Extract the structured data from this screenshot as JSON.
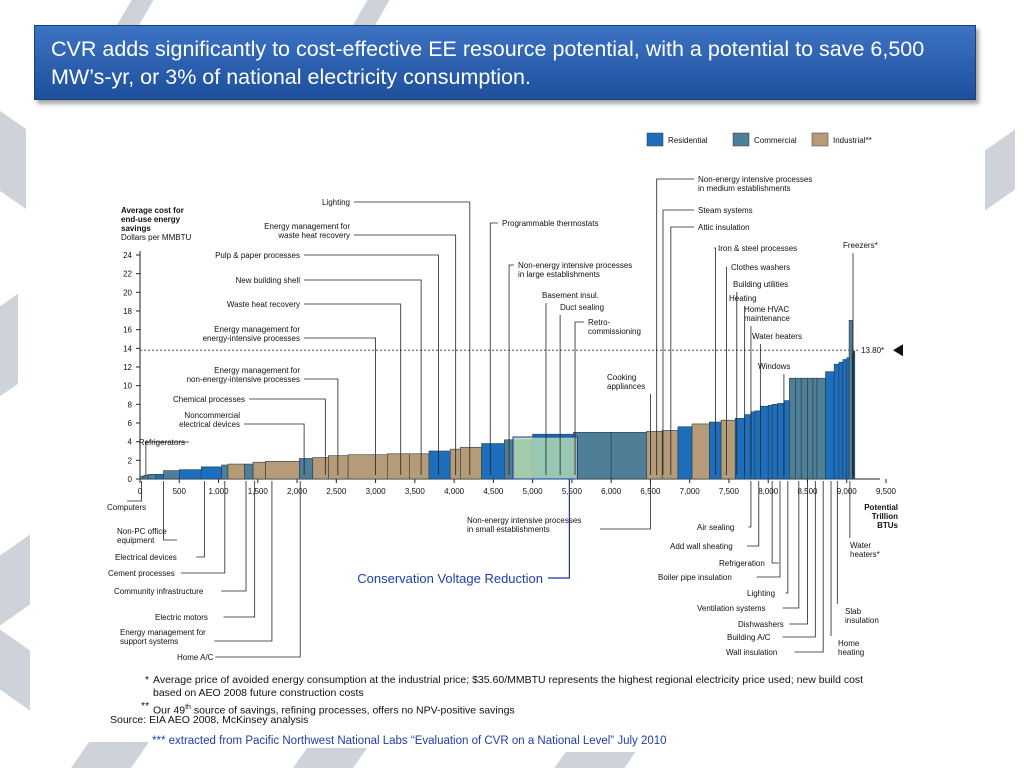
{
  "slide": {
    "title": "CVR adds significantly to cost-effective EE resource potential, with a potential to  save 6,500 MW’s-yr, or 3%  of national electricity consumption.",
    "title_bg": "#2a5fb0",
    "credit": "*** extracted from Pacific Northwest National Labs “Evaluation of CVR on a National Level”  July 2010"
  },
  "footnotes": {
    "note1_mark": "*",
    "note1": "Average price of avoided energy consumption at the industrial price; $35.60/MMBTU represents the highest regional electricity price used; new build cost based on AEO 2008 future construction costs",
    "note2_mark": "**",
    "note2_pre": "Our 49",
    "note2_sup": "th",
    "note2_post": " source of savings, refining processes, offers no NPV-positive savings",
    "source": "Source: EIA AEO 2008, McKinsey analysis"
  },
  "chart_data": {
    "type": "bar",
    "ylabel_lines": [
      "Average cost for",
      "end-use energy",
      "savings",
      "Dollars per MMBTU"
    ],
    "xlabel_lines": [
      "Potential",
      "Trillion",
      "BTUs"
    ],
    "xlim": [
      0,
      9500
    ],
    "ylim": [
      0,
      24
    ],
    "xticks": [
      0,
      500,
      1000,
      1500,
      2000,
      2500,
      3000,
      3500,
      4000,
      4500,
      5000,
      5500,
      6000,
      6500,
      7000,
      7500,
      8000,
      8500,
      9000,
      9500
    ],
    "xtick_labels": [
      "0",
      "500",
      "1,000",
      "1,500",
      "2,000",
      "2,500",
      "3,000",
      "3,500",
      "4,000",
      "4,500",
      "5,000",
      "5,500",
      "6,000",
      "6,500",
      "7,000",
      "7,500",
      "8,000",
      "8,500",
      "9,000",
      "9,500"
    ],
    "yticks": [
      0,
      2,
      4,
      6,
      8,
      10,
      12,
      14,
      16,
      18,
      20,
      22,
      24
    ],
    "reference_line": {
      "value": 13.8,
      "label": "13.80*"
    },
    "legend": {
      "position": "top-right",
      "items": [
        {
          "name": "Residential",
          "color": "#1d6fbd"
        },
        {
          "name": "Commercial",
          "color": "#4f7f96"
        },
        {
          "name": "Industrial**",
          "color": "#b59b77"
        }
      ]
    },
    "colors": {
      "Residential": "#1d6fbd",
      "Commercial": "#4f7f96",
      "Industrial": "#b59b77",
      "CVR": "#b7dfb2",
      "CVR_border": "#2233aa"
    },
    "bars": [
      {
        "x0": 0,
        "x1": 50,
        "y": 0.3,
        "sector": "Commercial"
      },
      {
        "x0": 50,
        "x1": 100,
        "y": 0.4,
        "sector": "Commercial"
      },
      {
        "x0": 100,
        "x1": 200,
        "y": 0.5,
        "sector": "Commercial"
      },
      {
        "x0": 200,
        "x1": 300,
        "y": 0.5,
        "sector": "Residential"
      },
      {
        "x0": 300,
        "x1": 500,
        "y": 0.9,
        "sector": "Commercial"
      },
      {
        "x0": 500,
        "x1": 780,
        "y": 1.0,
        "sector": "Residential"
      },
      {
        "x0": 780,
        "x1": 1040,
        "y": 1.3,
        "sector": "Residential"
      },
      {
        "x0": 1040,
        "x1": 1120,
        "y": 1.5,
        "sector": "Commercial"
      },
      {
        "x0": 1120,
        "x1": 1330,
        "y": 1.6,
        "sector": "Industrial"
      },
      {
        "x0": 1330,
        "x1": 1440,
        "y": 1.6,
        "sector": "Commercial"
      },
      {
        "x0": 1440,
        "x1": 1600,
        "y": 1.8,
        "sector": "Industrial"
      },
      {
        "x0": 1600,
        "x1": 2030,
        "y": 1.9,
        "sector": "Industrial"
      },
      {
        "x0": 2030,
        "x1": 2200,
        "y": 2.2,
        "sector": "Commercial"
      },
      {
        "x0": 2200,
        "x1": 2400,
        "y": 2.3,
        "sector": "Industrial"
      },
      {
        "x0": 2400,
        "x1": 2650,
        "y": 2.5,
        "sector": "Industrial"
      },
      {
        "x0": 2650,
        "x1": 3150,
        "y": 2.6,
        "sector": "Industrial"
      },
      {
        "x0": 3150,
        "x1": 3430,
        "y": 2.7,
        "sector": "Industrial"
      },
      {
        "x0": 3430,
        "x1": 3680,
        "y": 2.7,
        "sector": "Industrial"
      },
      {
        "x0": 3680,
        "x1": 3950,
        "y": 3.0,
        "sector": "Residential"
      },
      {
        "x0": 3950,
        "x1": 4080,
        "y": 3.2,
        "sector": "Industrial"
      },
      {
        "x0": 4080,
        "x1": 4350,
        "y": 3.4,
        "sector": "Industrial"
      },
      {
        "x0": 4350,
        "x1": 4640,
        "y": 3.8,
        "sector": "Residential"
      },
      {
        "x0": 4640,
        "x1": 5000,
        "y": 4.2,
        "sector": "Commercial"
      },
      {
        "x0": 5000,
        "x1": 5520,
        "y": 4.8,
        "sector": "Residential"
      },
      {
        "x0": 5520,
        "x1": 6000,
        "y": 5.0,
        "sector": "Commercial"
      },
      {
        "x0": 6000,
        "x1": 6450,
        "y": 5.0,
        "sector": "Commercial"
      },
      {
        "x0": 6450,
        "x1": 6650,
        "y": 5.1,
        "sector": "Industrial"
      },
      {
        "x0": 6650,
        "x1": 6850,
        "y": 5.2,
        "sector": "Industrial"
      },
      {
        "x0": 6850,
        "x1": 7030,
        "y": 5.6,
        "sector": "Residential"
      },
      {
        "x0": 7030,
        "x1": 7250,
        "y": 5.9,
        "sector": "Industrial"
      },
      {
        "x0": 7250,
        "x1": 7400,
        "y": 6.1,
        "sector": "Residential"
      },
      {
        "x0": 7400,
        "x1": 7580,
        "y": 6.3,
        "sector": "Industrial"
      },
      {
        "x0": 7580,
        "x1": 7700,
        "y": 6.5,
        "sector": "Residential"
      },
      {
        "x0": 7700,
        "x1": 7780,
        "y": 6.9,
        "sector": "Residential"
      },
      {
        "x0": 7780,
        "x1": 7830,
        "y": 7.2,
        "sector": "Residential"
      },
      {
        "x0": 7830,
        "x1": 7900,
        "y": 7.3,
        "sector": "Residential"
      },
      {
        "x0": 7900,
        "x1": 8000,
        "y": 7.8,
        "sector": "Residential"
      },
      {
        "x0": 8000,
        "x1": 8050,
        "y": 7.9,
        "sector": "Residential"
      },
      {
        "x0": 8050,
        "x1": 8120,
        "y": 8.0,
        "sector": "Residential"
      },
      {
        "x0": 8120,
        "x1": 8200,
        "y": 8.1,
        "sector": "Residential"
      },
      {
        "x0": 8200,
        "x1": 8270,
        "y": 8.4,
        "sector": "Residential"
      },
      {
        "x0": 8270,
        "x1": 8350,
        "y": 10.8,
        "sector": "Commercial"
      },
      {
        "x0": 8350,
        "x1": 8420,
        "y": 10.8,
        "sector": "Commercial"
      },
      {
        "x0": 8420,
        "x1": 8500,
        "y": 10.8,
        "sector": "Commercial"
      },
      {
        "x0": 8500,
        "x1": 8570,
        "y": 10.8,
        "sector": "Commercial"
      },
      {
        "x0": 8570,
        "x1": 8620,
        "y": 10.8,
        "sector": "Commercial"
      },
      {
        "x0": 8620,
        "x1": 8730,
        "y": 10.8,
        "sector": "Commercial"
      },
      {
        "x0": 8730,
        "x1": 8840,
        "y": 11.5,
        "sector": "Residential"
      },
      {
        "x0": 8840,
        "x1": 8900,
        "y": 12.3,
        "sector": "Residential"
      },
      {
        "x0": 8900,
        "x1": 8950,
        "y": 12.5,
        "sector": "Residential"
      },
      {
        "x0": 8950,
        "x1": 9000,
        "y": 12.8,
        "sector": "Residential"
      },
      {
        "x0": 9000,
        "x1": 9030,
        "y": 13.0,
        "sector": "Residential"
      },
      {
        "x0": 9030,
        "x1": 9070,
        "y": 17.0,
        "sector": "Commercial"
      },
      {
        "x0": 9070,
        "x1": 9080,
        "y": 13.3,
        "sector": "Residential"
      },
      {
        "x0": 9080,
        "x1": 9090,
        "y": 13.5,
        "sector": "Residential"
      },
      {
        "x0": 9090,
        "x1": 9100,
        "y": 13.7,
        "sector": "Residential"
      }
    ],
    "cvr_box": {
      "label": "Conservation Voltage Reduction",
      "x0": 4750,
      "x1": 5570,
      "y": 4.5
    },
    "annotations_above": [
      {
        "lines": [
          "Refrigerators"
        ],
        "x": 75
      },
      {
        "lines": [
          "Noncommercial",
          "electrical devices"
        ],
        "x": 2090
      },
      {
        "lines": [
          "Chemical processes"
        ],
        "x": 2360
      },
      {
        "lines": [
          "Energy management for",
          "non-energy-intensive processes"
        ],
        "x": 2520
      },
      {
        "lines": [
          "Energy management for",
          "energy-intensive processes"
        ],
        "x": 3000
      },
      {
        "lines": [
          "Waste heat recovery"
        ],
        "x": 3320
      },
      {
        "lines": [
          "New building shell"
        ],
        "x": 3580
      },
      {
        "lines": [
          "Pulp & paper processes"
        ],
        "x": 3800
      },
      {
        "lines": [
          "Energy management for",
          "waste heat recovery"
        ],
        "x": 4020
      },
      {
        "lines": [
          "Lighting"
        ],
        "x": 4200
      },
      {
        "lines": [
          "Programmable thermostats"
        ],
        "x": 4460
      },
      {
        "lines": [
          "Non-energy intensive processes",
          "in large establishments"
        ],
        "x": 4700
      },
      {
        "lines": [
          "Basement insul."
        ],
        "x": 5170
      },
      {
        "lines": [
          "Duct sealing"
        ],
        "x": 5350
      },
      {
        "lines": [
          "Retro-",
          "commissioning"
        ],
        "x": 5540
      },
      {
        "lines": [
          "Cooking",
          "appliances"
        ],
        "x": 6500
      },
      {
        "lines": [
          "Non-energy intensive processes",
          "in medium establishments"
        ],
        "x": 6580
      },
      {
        "lines": [
          "Steam systems"
        ],
        "x": 6660
      },
      {
        "lines": [
          "Attic insulation"
        ],
        "x": 6760
      },
      {
        "lines": [
          "Iron & steel processes"
        ],
        "x": 7330
      },
      {
        "lines": [
          "Clothes washers"
        ],
        "x": 7470
      },
      {
        "lines": [
          "Building utilities"
        ],
        "x": 7600
      },
      {
        "lines": [
          "Heating"
        ],
        "x": 7700
      },
      {
        "lines": [
          "Home HVAC",
          "maintenance"
        ],
        "x": 7780
      },
      {
        "lines": [
          "Water heaters"
        ],
        "x": 7900
      },
      {
        "lines": [
          "Windows"
        ],
        "x": 8200
      },
      {
        "lines": [
          "Freezers*"
        ],
        "x": 9080
      }
    ],
    "annotations_below": [
      {
        "lines": [
          "Computers"
        ],
        "x": 20
      },
      {
        "lines": [
          "Non-PC office",
          "equipment"
        ],
        "x": 300
      },
      {
        "lines": [
          "Electrical devices"
        ],
        "x": 820
      },
      {
        "lines": [
          "Cement processes"
        ],
        "x": 1080
      },
      {
        "lines": [
          "Community infrastructure"
        ],
        "x": 1350
      },
      {
        "lines": [
          "Electric motors"
        ],
        "x": 1460
      },
      {
        "lines": [
          "Energy management for",
          "support systems"
        ],
        "x": 1680
      },
      {
        "lines": [
          "Home A/C"
        ],
        "x": 2040
      },
      {
        "lines": [
          "Non-energy intensive processes",
          "in small establishments"
        ],
        "x": 6500
      },
      {
        "lines": [
          "Air sealing"
        ],
        "x": 7780
      },
      {
        "lines": [
          "Add wall sheating"
        ],
        "x": 7880
      },
      {
        "lines": [
          "Refrigeration"
        ],
        "x": 8050
      },
      {
        "lines": [
          "Boiler pipe insulation"
        ],
        "x": 8150
      },
      {
        "lines": [
          "Lighting"
        ],
        "x": 8250
      },
      {
        "lines": [
          "Ventilation systems"
        ],
        "x": 8390
      },
      {
        "lines": [
          "Dishwashers"
        ],
        "x": 8500
      },
      {
        "lines": [
          "Building A/C"
        ],
        "x": 8600
      },
      {
        "lines": [
          "Wall insulation"
        ],
        "x": 8700
      },
      {
        "lines": [
          "Water",
          "heaters*"
        ],
        "x": 9040
      },
      {
        "lines": [
          "Slab",
          "insulation"
        ],
        "x": 8880
      },
      {
        "lines": [
          "Home",
          "heating"
        ],
        "x": 8800
      }
    ]
  }
}
